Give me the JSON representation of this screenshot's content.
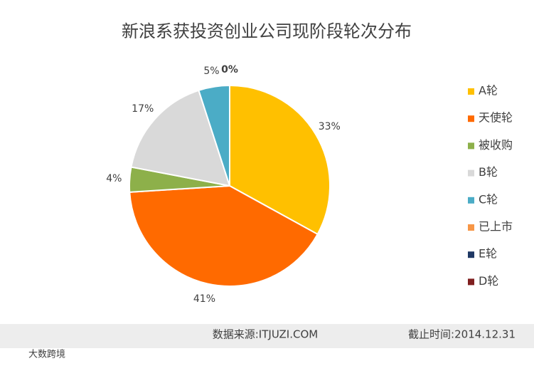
{
  "chart_data": {
    "type": "pie",
    "title": "新浪系获投资创业公司现阶段轮次分布",
    "categories": [
      "A轮",
      "天使轮",
      "被收购",
      "B轮",
      "C轮",
      "已上市",
      "E轮",
      "D轮"
    ],
    "values": [
      33,
      41,
      4,
      17,
      5,
      0,
      0,
      0
    ],
    "value_labels": [
      "33%",
      "41%",
      "4%",
      "17%",
      "5%",
      "0%",
      null,
      null
    ],
    "colors": [
      "#ffc000",
      "#ff6a00",
      "#8db04a",
      "#d9d9d9",
      "#4bacc6",
      "#f79646",
      "#1f3864",
      "#7f1f1f"
    ],
    "legend": "right"
  },
  "footer": {
    "source": "数据来源:ITJUZI.COM",
    "date": "截止时间:2014.12.31",
    "watermark": "大数跨境"
  }
}
